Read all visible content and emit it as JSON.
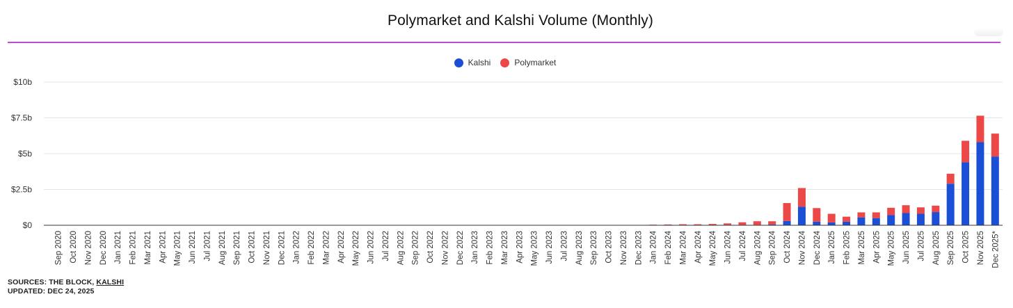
{
  "chart_data": {
    "type": "bar",
    "stacked": true,
    "title": "Polymarket and Kalshi Volume (Monthly)",
    "xlabel": "",
    "ylabel": "",
    "ylim": [
      0,
      10
    ],
    "yticks": [
      0,
      2.5,
      5,
      7.5,
      10
    ],
    "ytick_labels": [
      "$0",
      "$2.5b",
      "$5b",
      "$7.5b",
      "$10b"
    ],
    "grid": true,
    "legend_position": "top-center",
    "categories": [
      "Sep 2020",
      "Oct 2020",
      "Nov 2020",
      "Dec 2020",
      "Jan 2021",
      "Feb 2021",
      "Mar 2021",
      "Apr 2021",
      "May 2021",
      "Jun 2021",
      "Jul 2021",
      "Aug 2021",
      "Sep 2021",
      "Oct 2021",
      "Nov 2021",
      "Dec 2021",
      "Jan 2022",
      "Feb 2022",
      "Mar 2022",
      "Apr 2022",
      "May 2022",
      "Jun 2022",
      "Jul 2022",
      "Aug 2022",
      "Sep 2022",
      "Oct 2022",
      "Nov 2022",
      "Dec 2022",
      "Jan 2023",
      "Feb 2023",
      "Mar 2023",
      "Apr 2023",
      "May 2023",
      "Jun 2023",
      "Jul 2023",
      "Aug 2023",
      "Sep 2023",
      "Oct 2023",
      "Nov 2023",
      "Dec 2023",
      "Jan 2024",
      "Feb 2024",
      "Mar 2024",
      "Apr 2024",
      "May 2024",
      "Jun 2024",
      "Jul 2024",
      "Aug 2024",
      "Sep 2024",
      "Oct 2024",
      "Nov 2024",
      "Dec 2024",
      "Jan 2025",
      "Feb 2025",
      "Mar 2025",
      "Apr 2025",
      "May 2025",
      "Jun 2025",
      "Jul 2025",
      "Aug 2025",
      "Sep 2025",
      "Oct 2025",
      "Nov 2025",
      "Dec 2025*"
    ],
    "series": [
      {
        "name": "Kalshi",
        "color": "#1a4fd6",
        "values": [
          0,
          0,
          0,
          0,
          0,
          0,
          0,
          0,
          0,
          0,
          0,
          0,
          0,
          0,
          0,
          0,
          0,
          0,
          0,
          0,
          0,
          0,
          0,
          0,
          0,
          0,
          0,
          0,
          0,
          0,
          0,
          0,
          0,
          0,
          0,
          0,
          0,
          0,
          0,
          0.005,
          0.01,
          0.015,
          0.02,
          0.02,
          0.02,
          0.03,
          0.03,
          0.03,
          0.06,
          0.3,
          1.3,
          0.25,
          0.2,
          0.25,
          0.55,
          0.5,
          0.72,
          0.85,
          0.8,
          0.92,
          2.9,
          4.4,
          5.8,
          4.8
        ]
      },
      {
        "name": "Polymarket",
        "color": "#ec4848",
        "values": [
          0,
          0,
          0,
          0,
          0,
          0,
          0,
          0,
          0,
          0,
          0,
          0,
          0,
          0,
          0,
          0,
          0,
          0,
          0,
          0,
          0,
          0,
          0,
          0,
          0,
          0,
          0,
          0,
          0,
          0,
          0,
          0,
          0,
          0,
          0,
          0,
          0,
          0,
          0,
          0.005,
          0.03,
          0.04,
          0.05,
          0.05,
          0.07,
          0.1,
          0.18,
          0.25,
          0.22,
          1.25,
          1.3,
          0.95,
          0.6,
          0.35,
          0.35,
          0.4,
          0.5,
          0.55,
          0.45,
          0.45,
          0.7,
          1.5,
          1.85,
          1.6
        ]
      }
    ]
  },
  "footer": {
    "sources_prefix": "SOURCES: THE BLOCK, ",
    "sources_link": "KALSHI",
    "updated": "UPDATED: DEC 24, 2025"
  }
}
